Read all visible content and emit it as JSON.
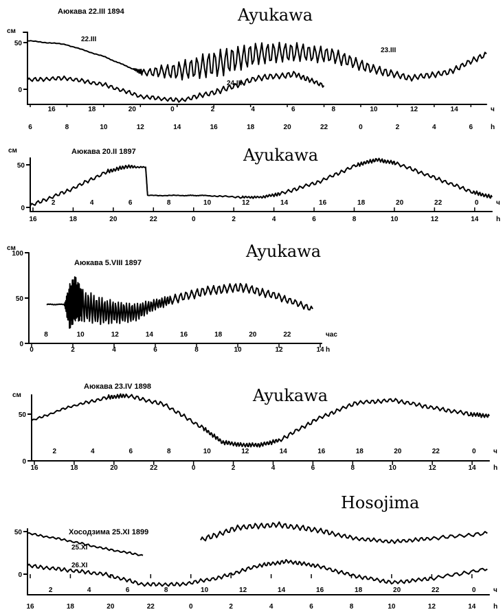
{
  "chart_data": [
    {
      "type": "line",
      "title": "Ayukawa",
      "subtitle": "Аюкава 22.III 1894",
      "unit": "см",
      "y_ticks": [
        0,
        50
      ],
      "top_axis": {
        "label": "ч",
        "ticks": [
          "16",
          "18",
          "20",
          "0",
          "2",
          "4",
          "6",
          "8",
          "10",
          "12",
          "14"
        ]
      },
      "bottom_axis": {
        "label": "h",
        "ticks": [
          "6",
          "8",
          "10",
          "12",
          "14",
          "16",
          "18",
          "20",
          "22",
          "0",
          "2",
          "4",
          "6"
        ]
      },
      "series": [
        {
          "name": "22.III",
          "x": [
            6,
            8,
            10,
            11.5,
            12,
            14,
            16,
            18,
            20,
            22,
            0,
            2,
            4,
            6
          ],
          "y": [
            52,
            48,
            35,
            22,
            18,
            20,
            28,
            38,
            40,
            36,
            22,
            12,
            18,
            38
          ],
          "osc": [
            0,
            0,
            0,
            0,
            3,
            10,
            15,
            12,
            10,
            8,
            5,
            3,
            3,
            3
          ]
        },
        {
          "name": "24.III",
          "x": [
            6,
            8,
            10,
            12,
            14,
            16,
            18,
            20,
            21.5
          ],
          "y": [
            10,
            12,
            5,
            -8,
            -12,
            -2,
            12,
            16,
            4
          ],
          "osc": [
            2,
            2,
            2,
            2,
            2,
            3,
            3,
            3,
            2
          ]
        }
      ],
      "annotations": [
        "23.III"
      ]
    },
    {
      "type": "line",
      "title": "Ayukawa",
      "subtitle": "Аюкава 20.II 1897",
      "unit": "см",
      "y_ticks": [
        0,
        50
      ],
      "top_axis": {
        "label": "ч",
        "ticks": [
          "2",
          "4",
          "6",
          "8",
          "10",
          "12",
          "14",
          "16",
          "18",
          "20",
          "22",
          "0"
        ]
      },
      "bottom_axis": {
        "label": "h",
        "ticks": [
          "16",
          "18",
          "20",
          "22",
          "0",
          "2",
          "4",
          "6",
          "8",
          "10",
          "12",
          "14"
        ]
      },
      "series": [
        {
          "name": "",
          "x": [
            15,
            17,
            19,
            20,
            21,
            21.1,
            23,
            0,
            2,
            3,
            4,
            6,
            8,
            9,
            10,
            12,
            14,
            15
          ],
          "y": [
            2,
            20,
            42,
            48,
            47,
            14,
            14,
            14,
            12,
            12,
            16,
            30,
            50,
            56,
            52,
            35,
            18,
            12
          ],
          "osc": [
            2,
            2,
            2,
            2,
            0,
            0,
            0,
            0,
            1,
            1,
            2,
            2,
            2,
            2,
            2,
            2,
            2,
            2
          ]
        }
      ]
    },
    {
      "type": "line",
      "title": "Ayukawa",
      "subtitle": "Аюкава 5.VIII 1897",
      "unit": "см",
      "y_ticks": [
        0,
        50,
        100
      ],
      "top_axis": {
        "label": "час",
        "ticks": [
          "8",
          "10",
          "12",
          "14",
          "16",
          "18",
          "20",
          "22"
        ]
      },
      "bottom_axis": {
        "label": "h",
        "ticks": [
          "0",
          "2",
          "4",
          "6",
          "8",
          "10",
          "12",
          "14"
        ]
      },
      "series": [
        {
          "name": "",
          "x": [
            -1,
            0,
            0.3,
            0.6,
            1,
            2,
            3,
            4,
            5,
            6,
            8,
            10,
            12,
            14
          ],
          "y": [
            43,
            43,
            40,
            50,
            42,
            36,
            34,
            34,
            42,
            48,
            58,
            62,
            52,
            38
          ],
          "osc": [
            0,
            0,
            25,
            25,
            18,
            15,
            12,
            10,
            6,
            5,
            5,
            5,
            4,
            3
          ]
        }
      ]
    },
    {
      "type": "line",
      "title": "Ayukawa",
      "subtitle": "Аюкава 23.IV 1898",
      "unit": "см",
      "y_ticks": [
        0,
        50
      ],
      "top_axis": {
        "label": "ч",
        "ticks": [
          "2",
          "4",
          "6",
          "8",
          "10",
          "12",
          "14",
          "16",
          "18",
          "20",
          "22",
          "0"
        ]
      },
      "bottom_axis": {
        "label": "h",
        "ticks": [
          "16",
          "18",
          "20",
          "22",
          "0",
          "2",
          "4",
          "6",
          "8",
          "10",
          "12",
          "14"
        ]
      },
      "series": [
        {
          "name": "",
          "x": [
            15,
            17,
            19,
            20,
            22,
            0,
            1,
            2,
            3,
            4,
            6,
            8,
            10,
            12,
            14,
            15
          ],
          "y": [
            43,
            58,
            68,
            70,
            60,
            35,
            20,
            17,
            17,
            22,
            45,
            62,
            65,
            57,
            50,
            48
          ],
          "osc": [
            1,
            1,
            2,
            2,
            2,
            2,
            2,
            2,
            2,
            2,
            2,
            2,
            2,
            2,
            2,
            2
          ]
        }
      ]
    },
    {
      "type": "line",
      "title": "Hosojima",
      "subtitle": "Хосодзима 25.XI 1899",
      "unit": "см",
      "y_ticks": [
        0,
        50
      ],
      "top_axis": {
        "label": "ч",
        "ticks": [
          "2",
          "4",
          "6",
          "8",
          "10",
          "12",
          "14",
          "16",
          "18",
          "20",
          "22",
          "0"
        ]
      },
      "bottom_axis": {
        "label": "h",
        "ticks": [
          "16",
          "18",
          "20",
          "22",
          "0",
          "2",
          "4",
          "6",
          "8",
          "10",
          "12",
          "14"
        ]
      },
      "series": [
        {
          "name": "25.XI",
          "x": [
            15,
            17,
            19,
            21
          ],
          "y": [
            48,
            40,
            30,
            22
          ],
          "osc": [
            1,
            1,
            1,
            1
          ]
        },
        {
          "name": "",
          "x": [
            24,
            26,
            28,
            30,
            32,
            34,
            36,
            38.9
          ],
          "y": [
            40,
            55,
            58,
            52,
            42,
            38,
            42,
            48
          ],
          "osc": [
            3,
            3,
            3,
            3,
            2,
            2,
            2,
            2
          ]
        },
        {
          "name": "26.XI",
          "x": [
            15,
            17,
            19,
            21,
            23,
            25,
            27,
            28.5,
            30,
            32,
            34,
            36,
            38.9
          ],
          "y": [
            10,
            5,
            0,
            -12,
            -12,
            -4,
            10,
            15,
            10,
            -2,
            -10,
            -5,
            6
          ],
          "osc": [
            2,
            2,
            2,
            2,
            2,
            2,
            2,
            2,
            2,
            2,
            2,
            2,
            2
          ]
        }
      ]
    }
  ]
}
